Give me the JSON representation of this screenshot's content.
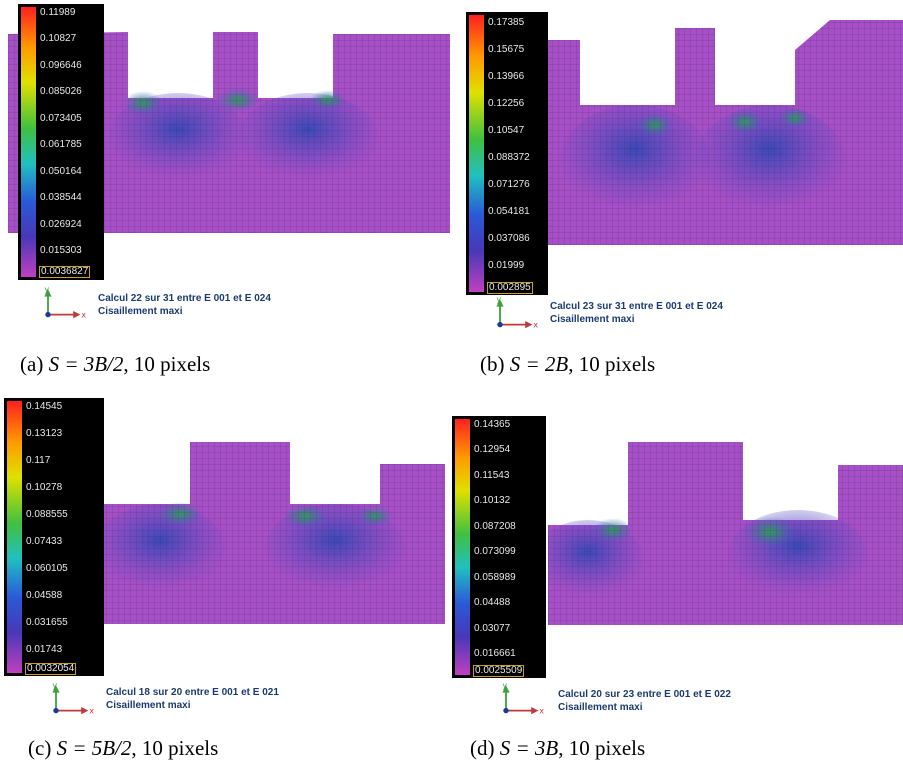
{
  "panels": [
    {
      "id": "a",
      "colorbar_ticks": [
        "0.11989",
        "0.10827",
        "0.096646",
        "0.085026",
        "0.073405",
        "0.061785",
        "0.050164",
        "0.038544",
        "0.026924",
        "0.015303",
        "0.0036827"
      ],
      "calc_line1": "Calcul 22 sur 31 entre E 001 et E 024",
      "calc_line2": "Cisaillement maxi",
      "caption_prefix": "(a) ",
      "caption_math": "S = 3B/2",
      "caption_suffix": ", 10 pixels"
    },
    {
      "id": "b",
      "colorbar_ticks": [
        "0.17385",
        "0.15675",
        "0.13966",
        "0.12256",
        "0.10547",
        "0.088372",
        "0.071276",
        "0.054181",
        "0.037086",
        "0.01999",
        "0.002895"
      ],
      "calc_line1": "Calcul 23 sur 31 entre E 001 et E 024",
      "calc_line2": "Cisaillement maxi",
      "caption_prefix": "(b) ",
      "caption_math": "S = 2B",
      "caption_suffix": ", 10 pixels"
    },
    {
      "id": "c",
      "colorbar_ticks": [
        "0.14545",
        "0.13123",
        "0.117",
        "0.10278",
        "0.088555",
        "0.07433",
        "0.060105",
        "0.04588",
        "0.031655",
        "0.01743",
        "0.0032054"
      ],
      "calc_line1": "Calcul 18 sur 20 entre E 001 et E 021",
      "calc_line2": "Cisaillement maxi",
      "caption_prefix": "(c) ",
      "caption_math": "S = 5B/2",
      "caption_suffix": ", 10 pixels"
    },
    {
      "id": "d",
      "colorbar_ticks": [
        "0.14365",
        "0.12954",
        "0.11543",
        "0.10132",
        "0.087208",
        "0.073099",
        "0.058989",
        "0.04488",
        "0.03077",
        "0.016661",
        "0.0025509"
      ],
      "calc_line1": "Calcul 20 sur 23 entre E 001 et E 022",
      "calc_line2": "Cisaillement maxi",
      "caption_prefix": "(d) ",
      "caption_math": "S = 3B",
      "caption_suffix": ", 10 pixels"
    }
  ],
  "axis_labels": {
    "y": "y",
    "x": "x"
  },
  "colors": {
    "field_base": "#a64fc8",
    "field_blue": "#3a48b8",
    "field_green": "#2f9a5a",
    "mesh": "#2a2a2a",
    "calc_text": "#1b3b6e"
  }
}
